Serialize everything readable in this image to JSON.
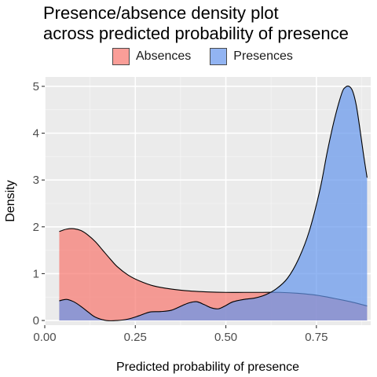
{
  "title": "Presence/absence density plot\nacross predicted probability of presence",
  "legend": [
    {
      "label": "Absences",
      "color": "#F8766D"
    },
    {
      "label": "Presences",
      "color": "#6495ED"
    }
  ],
  "chart_data": {
    "type": "area",
    "title": "Presence/absence density plot\nacross predicted probability of presence",
    "xlabel": "Predicted probability of presence",
    "ylabel": "Density",
    "xlim": [
      0,
      0.9
    ],
    "ylim": [
      -0.1,
      5.2
    ],
    "xticks": [
      0,
      0.25,
      0.5,
      0.75
    ],
    "xtick_labels": [
      "0.00",
      "0.25",
      "0.50",
      "0.75"
    ],
    "yticks": [
      0,
      1,
      2,
      3,
      4,
      5
    ],
    "ytick_labels": [
      "0",
      "1",
      "2",
      "3",
      "4",
      "5"
    ],
    "grid": true,
    "legend_position": "top",
    "panel_background": "#EBEBEB",
    "series": [
      {
        "name": "Absences",
        "color": "#F8766D",
        "x": [
          0.04,
          0.06,
          0.08,
          0.1,
          0.12,
          0.14,
          0.16,
          0.18,
          0.2,
          0.23,
          0.26,
          0.3,
          0.35,
          0.4,
          0.45,
          0.5,
          0.55,
          0.6,
          0.65,
          0.7,
          0.75,
          0.8,
          0.85,
          0.89
        ],
        "y": [
          1.9,
          1.95,
          1.96,
          1.92,
          1.82,
          1.68,
          1.5,
          1.32,
          1.15,
          0.97,
          0.85,
          0.74,
          0.67,
          0.63,
          0.61,
          0.6,
          0.6,
          0.6,
          0.6,
          0.58,
          0.54,
          0.47,
          0.39,
          0.31
        ]
      },
      {
        "name": "Presences",
        "color": "#6495ED",
        "x": [
          0.04,
          0.06,
          0.08,
          0.1,
          0.12,
          0.14,
          0.17,
          0.2,
          0.23,
          0.26,
          0.29,
          0.32,
          0.35,
          0.38,
          0.4,
          0.42,
          0.44,
          0.46,
          0.48,
          0.5,
          0.52,
          0.55,
          0.58,
          0.61,
          0.64,
          0.67,
          0.7,
          0.73,
          0.76,
          0.78,
          0.8,
          0.82,
          0.83,
          0.84,
          0.85,
          0.86,
          0.87,
          0.88,
          0.89
        ],
        "y": [
          0.42,
          0.45,
          0.4,
          0.3,
          0.18,
          0.07,
          0.0,
          0.0,
          0.03,
          0.1,
          0.18,
          0.19,
          0.22,
          0.32,
          0.38,
          0.4,
          0.34,
          0.27,
          0.25,
          0.32,
          0.4,
          0.45,
          0.48,
          0.55,
          0.68,
          0.9,
          1.3,
          1.9,
          2.8,
          3.6,
          4.3,
          4.85,
          4.98,
          5.0,
          4.9,
          4.6,
          4.1,
          3.55,
          3.05
        ]
      }
    ]
  }
}
